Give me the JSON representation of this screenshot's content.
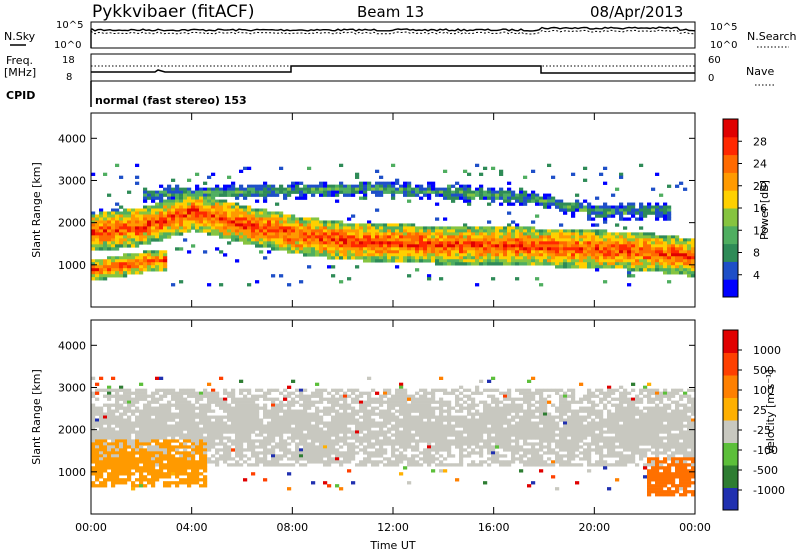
{
  "header": {
    "title": "Pykkvibaer (fitACF)",
    "beam": "Beam 13",
    "date": "08/Apr/2013"
  },
  "params": {
    "nsky_label": "N.Sky",
    "nsearch_label": "N.Search",
    "nsky_ticks": [
      "10^5",
      "10^0"
    ],
    "nsearch_ticks": [
      "10^5",
      "10^0"
    ],
    "freq_label": "Freq.",
    "freq_unit": "[MHz]",
    "freq_ticks": [
      "18",
      "8"
    ],
    "nave_label": "Nave",
    "nave_ticks": [
      "60",
      "0"
    ],
    "cpid_label": "CPID",
    "cpid_text": "normal (fast stereo) 153"
  },
  "chart_data": [
    {
      "type": "heatmap",
      "name": "power",
      "ylabel": "Slant Range [km]",
      "yticks": [
        1000,
        2000,
        3000,
        4000
      ],
      "ylim": [
        0,
        4600
      ],
      "colorbar_label": "Power [dB]",
      "colorbar_ticks": [
        "28",
        "24",
        "20",
        "16",
        "12",
        "8",
        "4"
      ],
      "colors": [
        "#0000ff",
        "#1e4fc8",
        "#2e8b57",
        "#4fae60",
        "#86c440",
        "#ffd000",
        "#ff9a00",
        "#ff6a00",
        "#ff2800",
        "#e00000"
      ],
      "bands": [
        {
          "label": "main echo band",
          "x": [
            0,
            2,
            4,
            6,
            8,
            10,
            12,
            14,
            16,
            18,
            20,
            22,
            24
          ],
          "y_center_km": [
            1800,
            1950,
            2300,
            2000,
            1750,
            1600,
            1550,
            1500,
            1500,
            1450,
            1400,
            1350,
            1200
          ],
          "width_km": 450,
          "color": "#ff6a00"
        },
        {
          "label": "far band",
          "x": [
            2,
            5,
            8,
            11,
            14,
            17,
            20,
            23
          ],
          "y_center_km": [
            2700,
            2750,
            2800,
            2850,
            2750,
            2650,
            2300,
            2300
          ],
          "width_km": 250,
          "color": "#2e8b57"
        },
        {
          "label": "near band",
          "x": [
            0,
            1,
            2,
            3
          ],
          "y_center_km": [
            900,
            1000,
            1100,
            1150
          ],
          "width_km": 250,
          "color": "#ff2800"
        }
      ]
    },
    {
      "type": "heatmap",
      "name": "velocity",
      "xlabel": "Time UT",
      "ylabel": "Slant Range [km]",
      "xticks": [
        "00:00",
        "04:00",
        "08:00",
        "12:00",
        "16:00",
        "20:00",
        "00:00"
      ],
      "yticks": [
        1000,
        2000,
        3000,
        4000
      ],
      "ylim": [
        0,
        4600
      ],
      "colorbar_label": "Velocity [m s⁻¹]",
      "colorbar_ticks": [
        "1000",
        "500",
        "100",
        "25",
        "-25",
        "-100",
        "-500",
        "-1000"
      ],
      "colors": [
        "#2030b0",
        "#2e7d32",
        "#5cbf3a",
        "#c8c8c0",
        "#ffb000",
        "#ff8000",
        "#ff4000",
        "#e00000"
      ],
      "regions": [
        {
          "label": "ground scatter",
          "x0": 0,
          "x1": 24,
          "y_center_km": 2100,
          "width_km": 1200,
          "color": "#c8c8c0"
        },
        {
          "label": "negative velocity early",
          "x0": 0,
          "x1": 4.5,
          "y_center_km": 1250,
          "width_km": 500,
          "color": "#ff9a00"
        },
        {
          "label": "negative velocity late",
          "x0": 22,
          "x1": 24,
          "y_center_km": 900,
          "width_km": 350,
          "color": "#ff7000"
        }
      ]
    }
  ]
}
